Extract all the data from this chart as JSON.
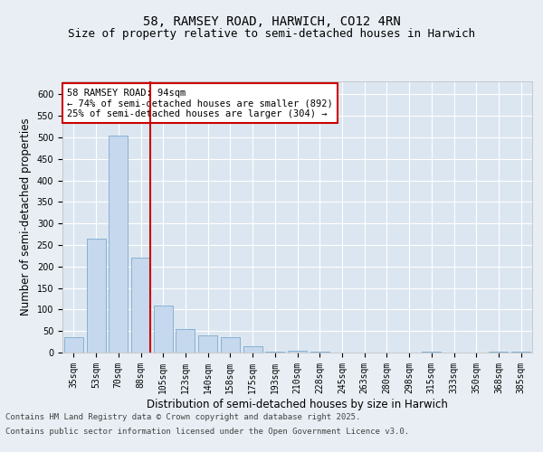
{
  "title_line1": "58, RAMSEY ROAD, HARWICH, CO12 4RN",
  "title_line2": "Size of property relative to semi-detached houses in Harwich",
  "xlabel": "Distribution of semi-detached houses by size in Harwich",
  "ylabel": "Number of semi-detached properties",
  "categories": [
    "35sqm",
    "53sqm",
    "70sqm",
    "88sqm",
    "105sqm",
    "123sqm",
    "140sqm",
    "158sqm",
    "175sqm",
    "193sqm",
    "210sqm",
    "228sqm",
    "245sqm",
    "263sqm",
    "280sqm",
    "298sqm",
    "315sqm",
    "333sqm",
    "350sqm",
    "368sqm",
    "385sqm"
  ],
  "values": [
    35,
    265,
    505,
    220,
    110,
    55,
    40,
    35,
    15,
    2,
    5,
    2,
    0,
    0,
    0,
    0,
    2,
    0,
    0,
    2,
    2
  ],
  "bar_color": "#c5d8ed",
  "bar_edge_color": "#7aaad0",
  "vline_color": "#cc0000",
  "vline_pos": 3.43,
  "annotation_text": "58 RAMSEY ROAD: 94sqm\n← 74% of semi-detached houses are smaller (892)\n25% of semi-detached houses are larger (304) →",
  "annotation_box_color": "#ffffff",
  "annotation_box_edge_color": "#cc0000",
  "ylim": [
    0,
    630
  ],
  "yticks": [
    0,
    50,
    100,
    150,
    200,
    250,
    300,
    350,
    400,
    450,
    500,
    550,
    600
  ],
  "footer_line1": "Contains HM Land Registry data © Crown copyright and database right 2025.",
  "footer_line2": "Contains public sector information licensed under the Open Government Licence v3.0.",
  "background_color": "#e8eef4",
  "plot_bg_color": "#dce6f0",
  "grid_color": "#ffffff",
  "title_fontsize": 10,
  "subtitle_fontsize": 9,
  "tick_fontsize": 7,
  "label_fontsize": 8.5,
  "footer_fontsize": 6.5,
  "annotation_fontsize": 7.5
}
